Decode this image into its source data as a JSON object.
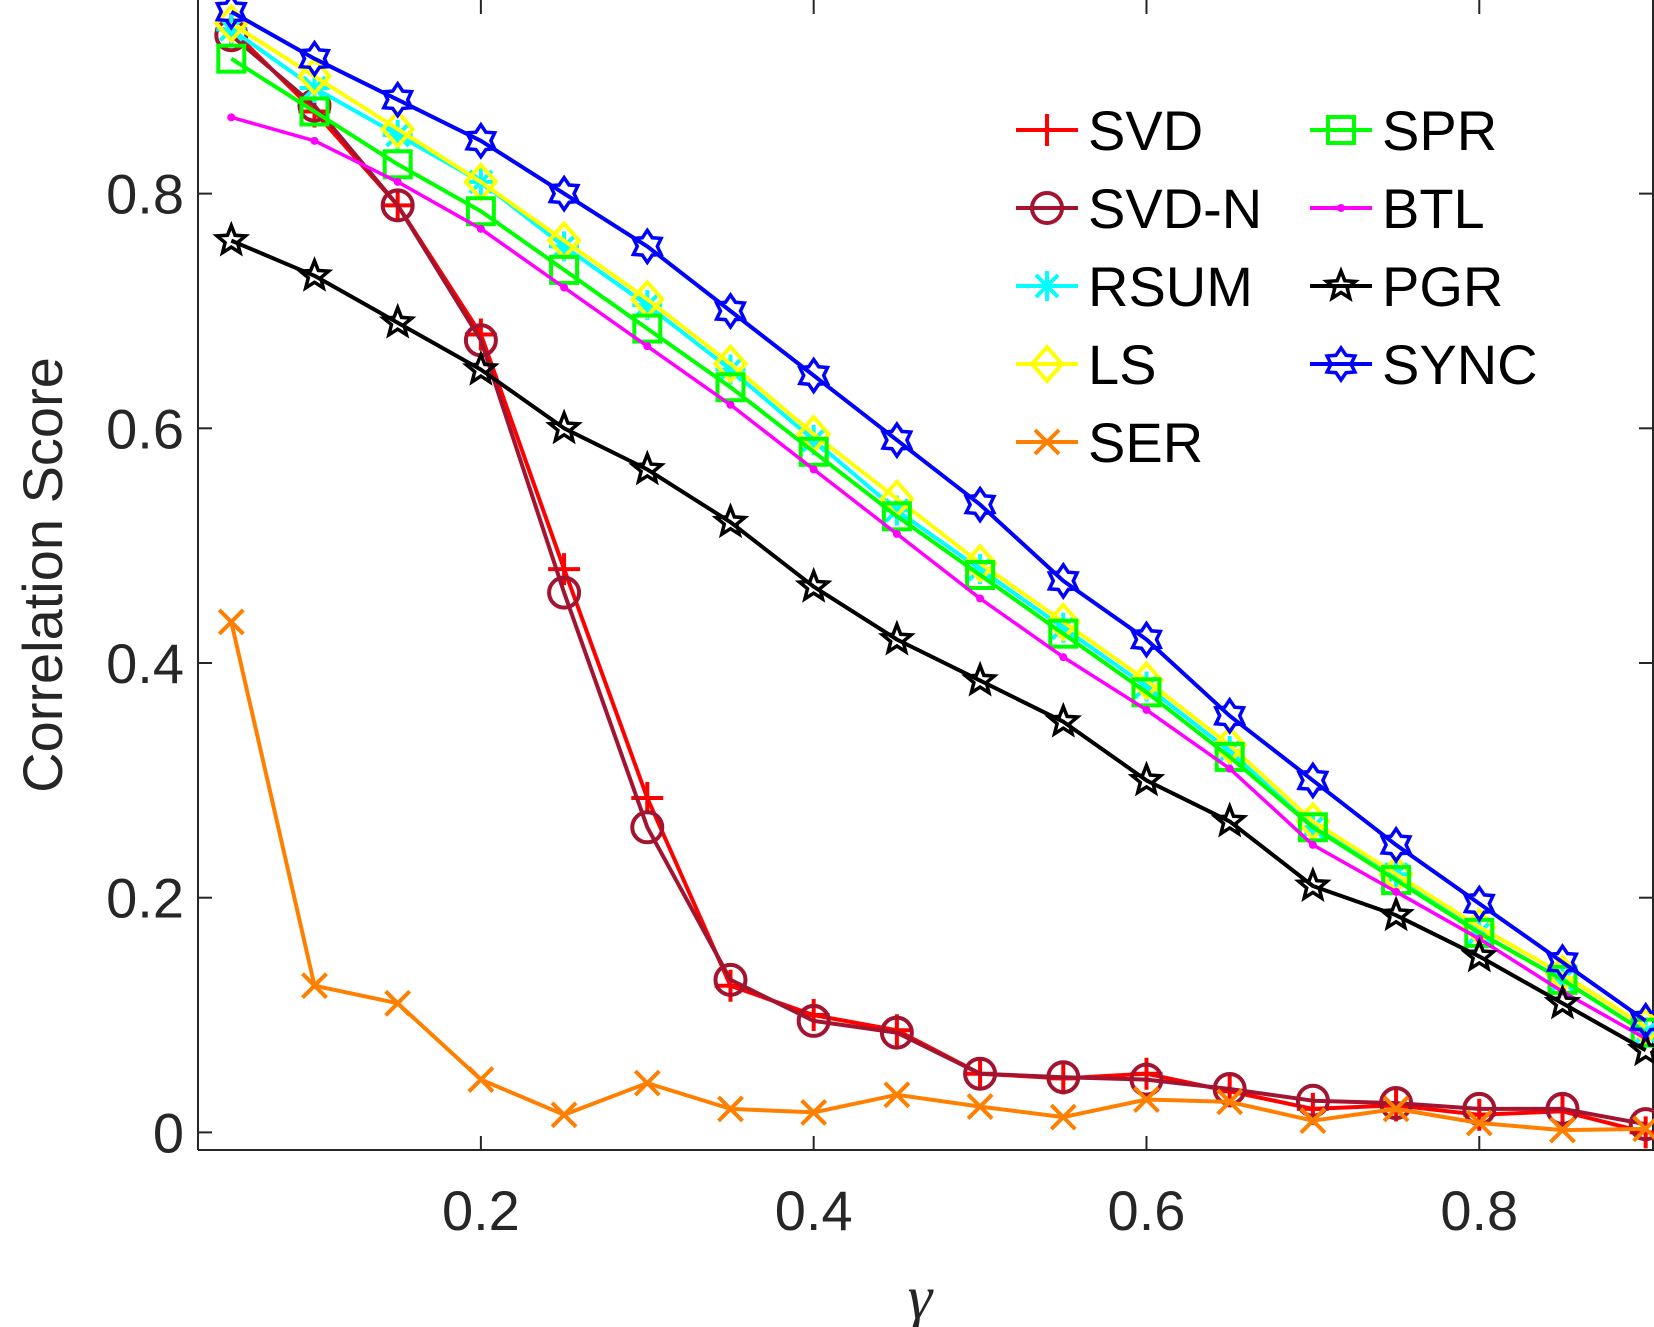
{
  "chart_data": {
    "type": "line",
    "title": "",
    "xlabel": "γ",
    "ylabel": "Correlation Score",
    "xlim": [
      0.03,
      0.905
    ],
    "ylim": [
      -0.015,
      0.965
    ],
    "xticks": [
      0.2,
      0.4,
      0.6,
      0.8
    ],
    "xtick_labels": [
      "0.2",
      "0.4",
      "0.6",
      "0.8"
    ],
    "yticks": [
      0,
      0.2,
      0.4,
      0.6,
      0.8
    ],
    "ytick_labels": [
      "0",
      "0.2",
      "0.4",
      "0.6",
      "0.8"
    ],
    "grid": false,
    "legend_position": "top-right",
    "x": [
      0.05,
      0.1,
      0.15,
      0.2,
      0.25,
      0.3,
      0.35,
      0.4,
      0.45,
      0.5,
      0.55,
      0.6,
      0.65,
      0.7,
      0.75,
      0.8,
      0.85,
      0.9
    ],
    "series": [
      {
        "name": "SVD",
        "color": "#ff0000",
        "marker": "plus",
        "values": [
          0.94,
          0.87,
          0.79,
          0.68,
          0.48,
          0.285,
          0.125,
          0.1,
          0.087,
          0.05,
          0.046,
          0.05,
          0.035,
          0.02,
          0.023,
          0.015,
          0.018,
          0.0
        ]
      },
      {
        "name": "SVD-N",
        "color": "#a2142f",
        "marker": "circle",
        "values": [
          0.935,
          0.875,
          0.79,
          0.675,
          0.46,
          0.26,
          0.13,
          0.095,
          0.085,
          0.05,
          0.047,
          0.045,
          0.037,
          0.027,
          0.025,
          0.02,
          0.02,
          0.007
        ]
      },
      {
        "name": "RSUM",
        "color": "#00ffff",
        "marker": "asterisk",
        "values": [
          0.94,
          0.89,
          0.85,
          0.81,
          0.755,
          0.705,
          0.65,
          0.59,
          0.53,
          0.48,
          0.43,
          0.38,
          0.325,
          0.26,
          0.22,
          0.17,
          0.13,
          0.085
        ]
      },
      {
        "name": "LS",
        "color": "#ffff00",
        "marker": "diamond",
        "values": [
          0.945,
          0.9,
          0.855,
          0.81,
          0.76,
          0.71,
          0.655,
          0.595,
          0.54,
          0.485,
          0.435,
          0.385,
          0.33,
          0.265,
          0.22,
          0.175,
          0.135,
          0.09
        ]
      },
      {
        "name": "SER",
        "color": "#ff8000",
        "marker": "cross",
        "values": [
          0.435,
          0.125,
          0.11,
          0.045,
          0.015,
          0.042,
          0.02,
          0.017,
          0.032,
          0.022,
          0.013,
          0.028,
          0.026,
          0.01,
          0.02,
          0.008,
          0.002,
          0.003
        ]
      },
      {
        "name": "SPR",
        "color": "#00ff00",
        "marker": "square",
        "values": [
          0.915,
          0.87,
          0.825,
          0.785,
          0.735,
          0.685,
          0.635,
          0.58,
          0.525,
          0.475,
          0.425,
          0.375,
          0.32,
          0.26,
          0.215,
          0.17,
          0.13,
          0.085
        ]
      },
      {
        "name": "BTL",
        "color": "#ff00ff",
        "marker": "dot",
        "values": [
          0.865,
          0.845,
          0.81,
          0.77,
          0.72,
          0.67,
          0.62,
          0.565,
          0.51,
          0.455,
          0.405,
          0.36,
          0.31,
          0.245,
          0.205,
          0.165,
          0.12,
          0.08
        ]
      },
      {
        "name": "PGR",
        "color": "#000000",
        "marker": "pentagram",
        "values": [
          0.76,
          0.73,
          0.69,
          0.65,
          0.6,
          0.565,
          0.52,
          0.465,
          0.42,
          0.385,
          0.35,
          0.3,
          0.265,
          0.21,
          0.185,
          0.15,
          0.11,
          0.07
        ]
      },
      {
        "name": "SYNC",
        "color": "#0000ff",
        "marker": "hexagram",
        "values": [
          0.955,
          0.915,
          0.88,
          0.845,
          0.8,
          0.755,
          0.7,
          0.645,
          0.59,
          0.535,
          0.47,
          0.42,
          0.355,
          0.3,
          0.245,
          0.195,
          0.145,
          0.095
        ]
      }
    ]
  }
}
